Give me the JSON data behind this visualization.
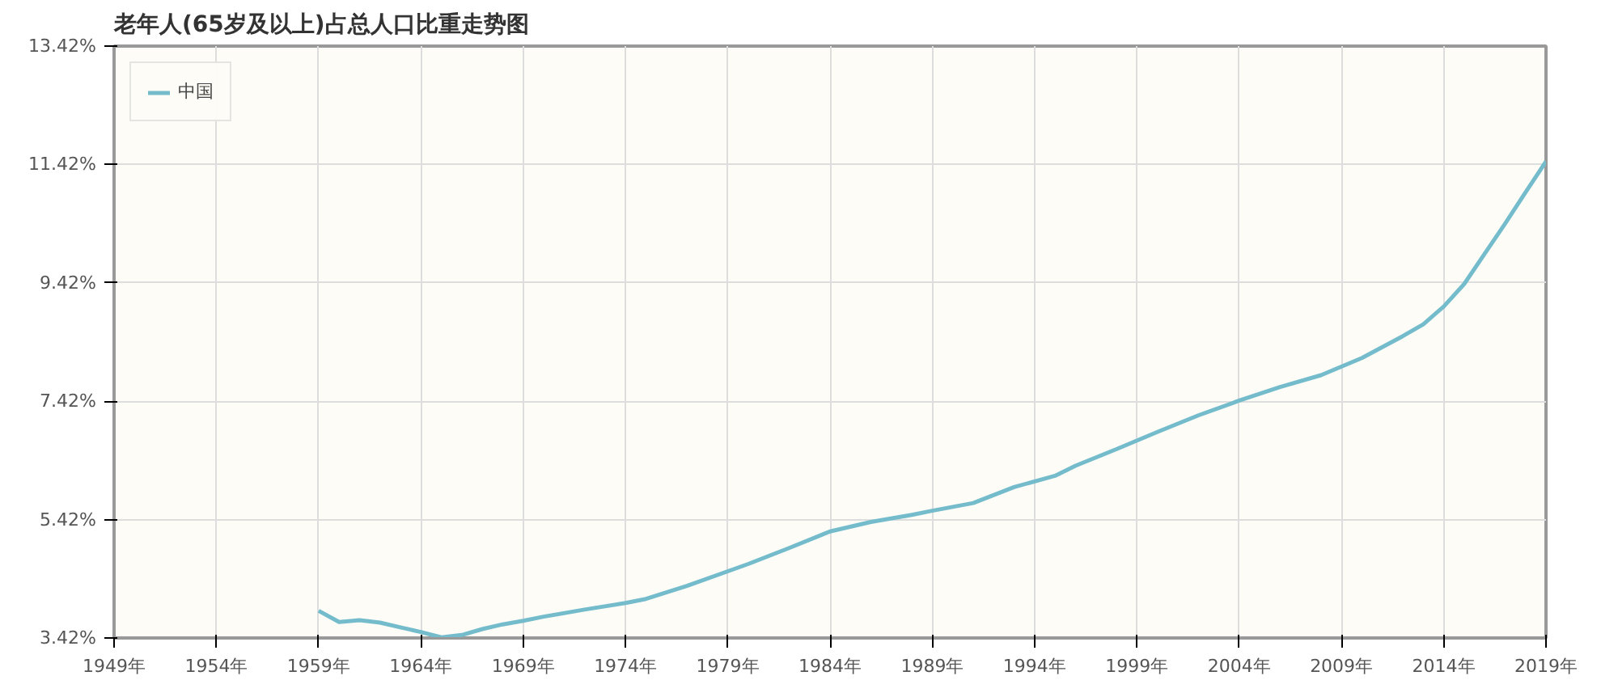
{
  "chart_data": {
    "type": "line",
    "title": "老年人(65岁及以上)占总人口比重走势图",
    "x": [
      1959,
      1960,
      1961,
      1962,
      1963,
      1964,
      1965,
      1966,
      1967,
      1968,
      1969,
      1970,
      1972,
      1974,
      1975,
      1977,
      1980,
      1982,
      1984,
      1986,
      1988,
      1989,
      1991,
      1993,
      1995,
      1996,
      1998,
      2000,
      2002,
      2004,
      2006,
      2008,
      2010,
      2012,
      2013,
      2014,
      2015,
      2016,
      2017,
      2018,
      2019
    ],
    "series": [
      {
        "name": "中国",
        "color": "#74bccc",
        "values": [
          3.88,
          3.69,
          3.72,
          3.68,
          3.6,
          3.52,
          3.43,
          3.47,
          3.57,
          3.65,
          3.71,
          3.78,
          3.9,
          4.01,
          4.08,
          4.3,
          4.67,
          4.94,
          5.22,
          5.38,
          5.5,
          5.57,
          5.7,
          5.97,
          6.16,
          6.33,
          6.61,
          6.9,
          7.18,
          7.43,
          7.66,
          7.86,
          8.15,
          8.52,
          8.72,
          9.02,
          9.4,
          9.91,
          10.42,
          10.95,
          11.47
        ]
      }
    ],
    "xlim": [
      1949,
      2019
    ],
    "ylim": [
      3.42,
      13.42
    ],
    "xticks": [
      {
        "value": 1949,
        "label": "1949年"
      },
      {
        "value": 1954,
        "label": "1954年"
      },
      {
        "value": 1959,
        "label": "1959年"
      },
      {
        "value": 1964,
        "label": "1964年"
      },
      {
        "value": 1969,
        "label": "1969年"
      },
      {
        "value": 1974,
        "label": "1974年"
      },
      {
        "value": 1979,
        "label": "1979年"
      },
      {
        "value": 1984,
        "label": "1984年"
      },
      {
        "value": 1989,
        "label": "1989年"
      },
      {
        "value": 1994,
        "label": "1994年"
      },
      {
        "value": 1999,
        "label": "1999年"
      },
      {
        "value": 2004,
        "label": "2004年"
      },
      {
        "value": 2009,
        "label": "2009年"
      },
      {
        "value": 2014,
        "label": "2014年"
      },
      {
        "value": 2019,
        "label": "2019年"
      }
    ],
    "yticks": [
      {
        "value": 3.42,
        "label": "3.42%"
      },
      {
        "value": 5.42,
        "label": "5.42%"
      },
      {
        "value": 7.42,
        "label": "7.42%"
      },
      {
        "value": 9.42,
        "label": "9.42%"
      },
      {
        "value": 11.42,
        "label": "11.42%"
      },
      {
        "value": 13.42,
        "label": "13.42%"
      }
    ],
    "grid": true,
    "legend": "top left",
    "marker": "none",
    "line_style": "solid"
  }
}
